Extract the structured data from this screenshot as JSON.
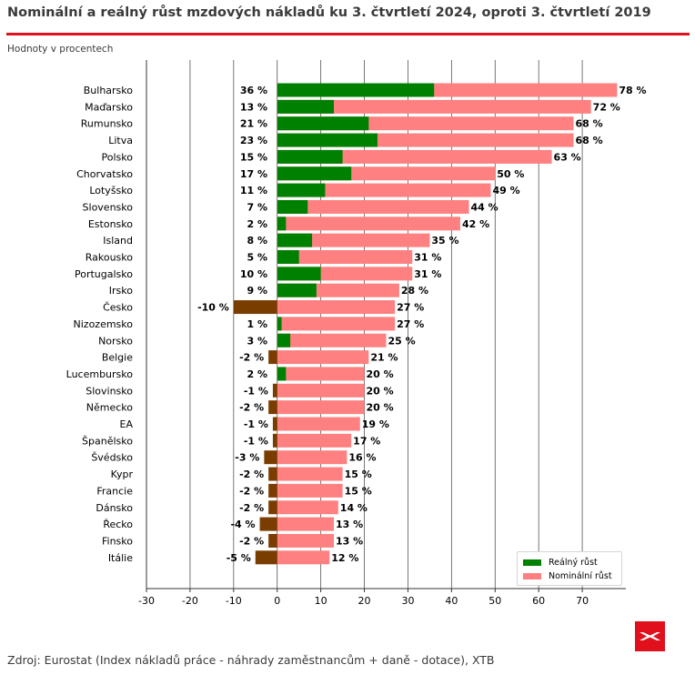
{
  "title": "Nominální a reálný růst mzdových nákladů ku  3. čtvrtletí 2024, oproti 3. čtvrtletí 2019",
  "subtitle": "Hodnoty v procentech",
  "source": "Zdroj: Eurostat (Index nákladů práce - náhrady zaměstnancům + daně - dotace), XTB",
  "logo": "xtb-logo",
  "colors": {
    "real": "#008000",
    "real_negative": "#7a3d00",
    "nominal": "#ff8080",
    "accent": "#e0101d",
    "grid": "#555555"
  },
  "chart_data": {
    "type": "bar",
    "orientation": "horizontal",
    "categories": [
      "Bulharsko",
      "Maďarsko",
      "Rumunsko",
      "Litva",
      "Polsko",
      "Chorvatsko",
      "Lotyšsko",
      "Slovensko",
      "Estonsko",
      "Island",
      "Rakousko",
      "Portugalsko",
      "Irsko",
      "Česko",
      "Nizozemsko",
      "Norsko",
      "Belgie",
      "Lucembursko",
      "Slovinsko",
      "Německo",
      "EA",
      "Španělsko",
      "Švédsko",
      "Kypr",
      "Francie",
      "Dánsko",
      "Řecko",
      "Finsko",
      "Itálie"
    ],
    "series": [
      {
        "name": "Reálný růst",
        "values": [
          36,
          13,
          21,
          23,
          15,
          17,
          11,
          7,
          2,
          8,
          5,
          10,
          9,
          -10,
          1,
          3,
          -2,
          2,
          -1,
          -2,
          -1,
          -1,
          -3,
          -2,
          -2,
          -2,
          -4,
          -2,
          -5
        ]
      },
      {
        "name": "Nominální růst",
        "values": [
          78,
          72,
          68,
          68,
          63,
          50,
          49,
          44,
          42,
          35,
          31,
          31,
          28,
          27,
          27,
          25,
          21,
          20,
          20,
          20,
          19,
          17,
          16,
          15,
          15,
          14,
          13,
          13,
          12
        ]
      }
    ],
    "value_suffix": " %",
    "xlim": [
      -30,
      80
    ],
    "xticks": [
      -30,
      -20,
      -10,
      0,
      10,
      20,
      30,
      40,
      50,
      60,
      70
    ],
    "grid": "vertical",
    "legend": "bottom-right",
    "xlabel": "",
    "ylabel": ""
  }
}
